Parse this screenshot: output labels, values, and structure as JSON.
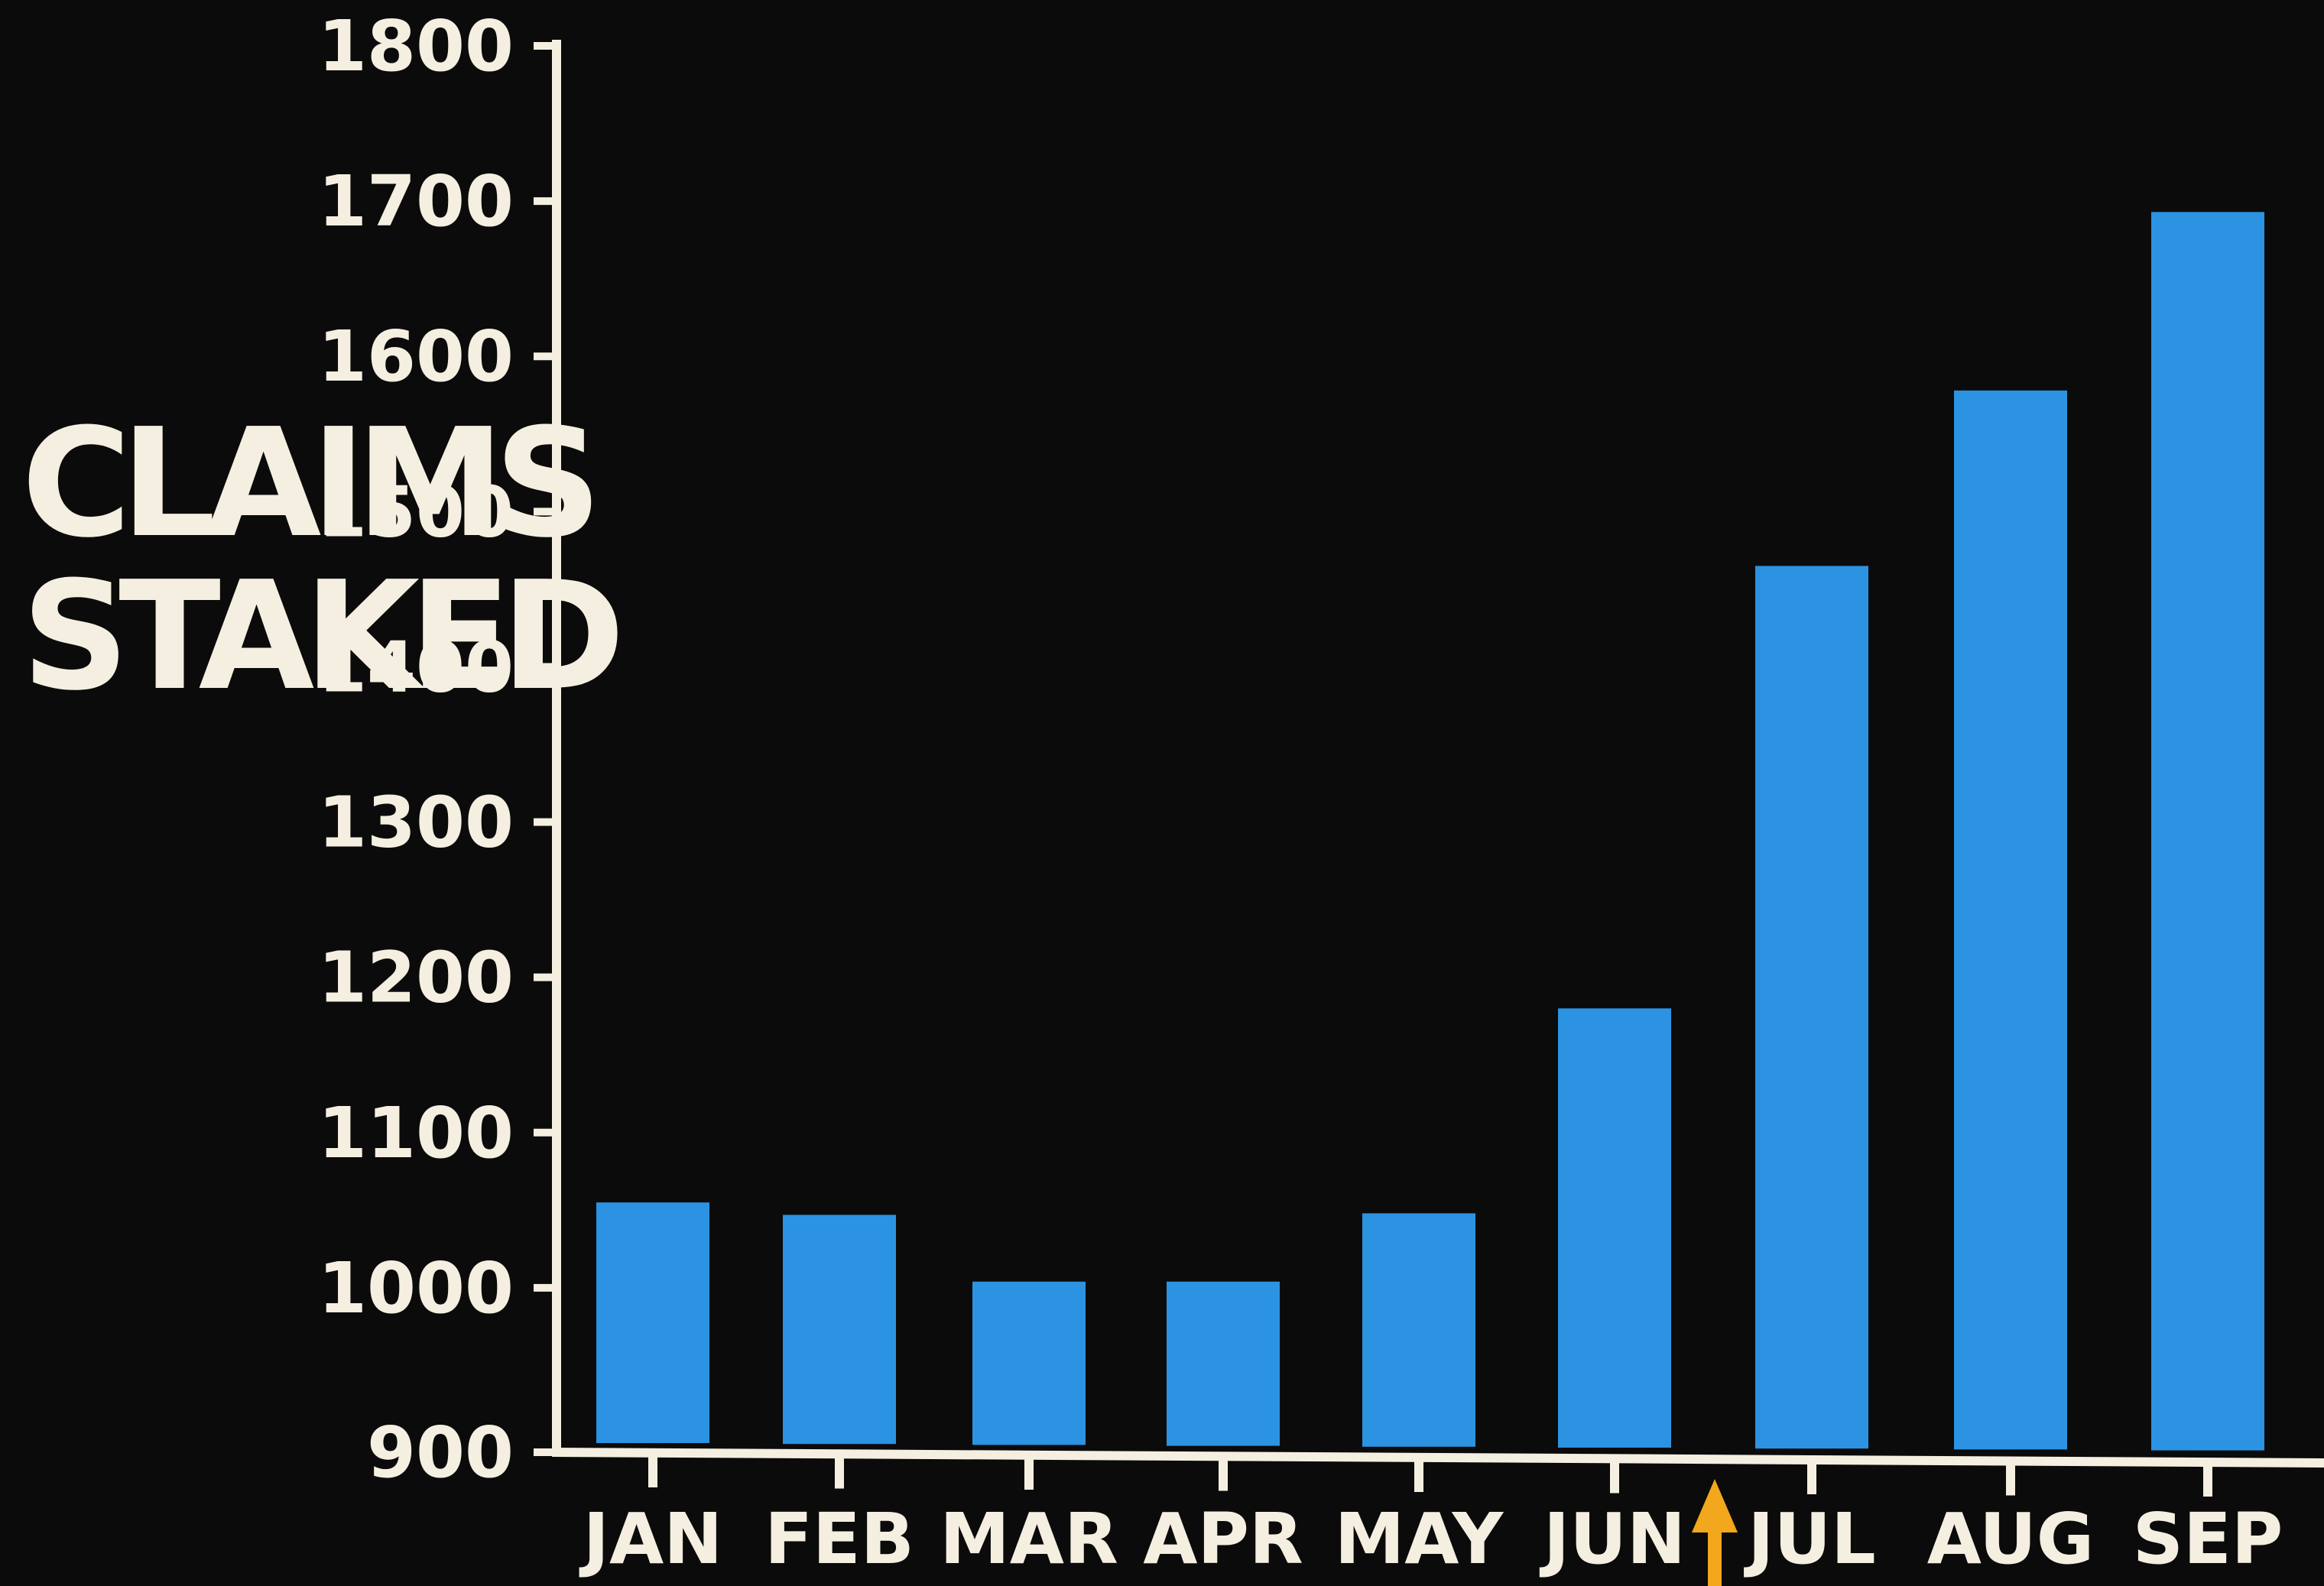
{
  "chart_data": {
    "type": "bar",
    "title": "",
    "ylabel_lines": [
      "CLAIMS",
      "STAKED"
    ],
    "xlabel": "",
    "categories": [
      "JAN",
      "FEB",
      "MAR",
      "APR",
      "MAY",
      "JUN",
      "JUL",
      "AUG",
      "SEP"
    ],
    "values": [
      1055,
      1047,
      1004,
      1004,
      1048,
      1180,
      1465,
      1578,
      1693
    ],
    "ylim": [
      900,
      1800
    ],
    "yticks": [
      900,
      1000,
      1100,
      1200,
      1300,
      1400,
      1500,
      1600,
      1700,
      1800
    ],
    "grid": false,
    "legend": "none",
    "marker": {
      "between": [
        "JUN",
        "JUL"
      ],
      "icon": "up-arrow-icon"
    },
    "colors": {
      "background": "#0b0b0b",
      "bar": "#2b93e2",
      "axis": "#f4efe0",
      "text": "#f4efe0",
      "marker": "#f2a71c"
    }
  }
}
